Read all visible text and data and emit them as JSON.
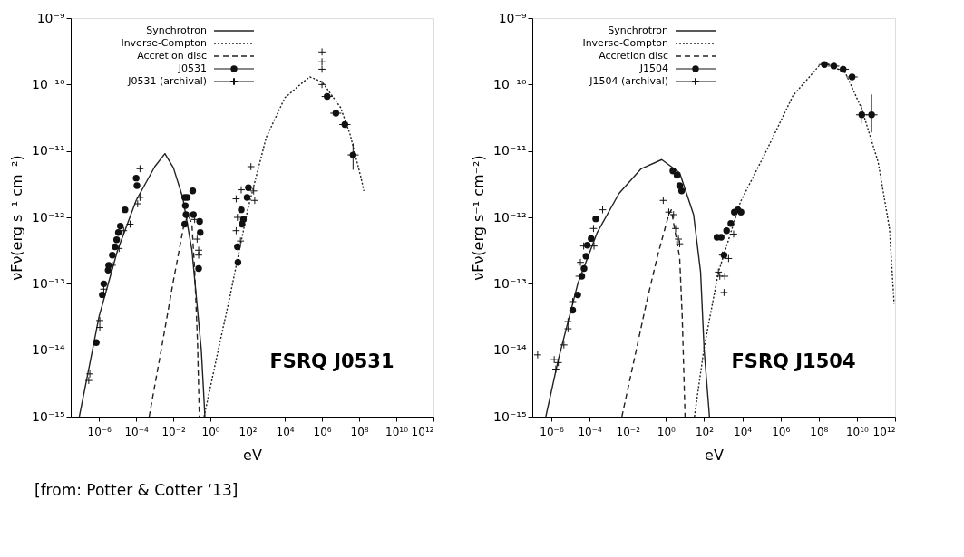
{
  "chart_data": [
    {
      "type": "scatter",
      "title": "FSRQ J0531",
      "xlabel": "eV",
      "ylabel": "νFν(erg s⁻¹ cm⁻²)",
      "log": "xy",
      "legend": "top left",
      "annotations": [
        "[from: Potter & Cotter ‘13]"
      ],
      "xlim": [
        3e-08,
        1000000000000.0
      ],
      "ylim": [
        1e-15,
        1e-09
      ],
      "xticks": [
        {
          "value": 1e-06,
          "label": "10⁻⁶"
        },
        {
          "value": 0.0001,
          "label": "10⁻⁴"
        },
        {
          "value": 0.01,
          "label": "10⁻²"
        },
        {
          "value": 1,
          "label": "10⁰"
        },
        {
          "value": 100,
          "label": "10²"
        },
        {
          "value": 10000.0,
          "label": "10⁴"
        },
        {
          "value": 1000000.0,
          "label": "10⁶"
        },
        {
          "value": 100000000.0,
          "label": "10⁸"
        },
        {
          "value": 10000000000.0,
          "label": "10¹⁰"
        },
        {
          "value": 1000000000000.0,
          "label": "10¹²"
        }
      ],
      "yticks": [
        {
          "value": 1e-15,
          "label": "10⁻¹⁵"
        },
        {
          "value": 1e-14,
          "label": "10⁻¹⁴"
        },
        {
          "value": 1e-13,
          "label": "10⁻¹³"
        },
        {
          "value": 1e-12,
          "label": "10⁻¹²"
        },
        {
          "value": 1e-11,
          "label": "10⁻¹¹"
        },
        {
          "value": 1e-10,
          "label": "10⁻¹⁰"
        },
        {
          "value": 1e-09,
          "label": "10⁻⁹"
        }
      ],
      "series": [
        {
          "name": "Synchrotron",
          "type": "line",
          "line_style": "solid",
          "color": "#222222",
          "x": [
            8.7e-08,
            3.2e-07,
            1e-06,
            1e-05,
            0.0001,
            0.001,
            0.0035,
            0.01,
            0.032,
            0.1,
            0.32,
            0.4,
            0.5
          ],
          "values": [
            1e-15,
            6.3e-15,
            3.2e-14,
            3.2e-13,
            1.8e-12,
            5.8e-12,
            9.1e-12,
            5.6e-12,
            2e-12,
            3.2e-13,
            1e-14,
            3.2e-15,
            1e-15
          ]
        },
        {
          "name": "Inverse-Compton",
          "type": "line",
          "line_style": "dotted",
          "color": "#222222",
          "x": [
            0.45,
            2.6,
            10,
            100,
            1000,
            10000.0,
            100000.0,
            220000.0,
            1000000.0,
            10000000.0,
            32000000.0,
            130000000.0,
            180000000.0
          ],
          "values": [
            1e-15,
            1e-14,
            5.6e-14,
            1.3e-12,
            1.6e-11,
            6.3e-11,
            1.1e-10,
            1.3e-10,
            1.1e-10,
            4.5e-11,
            1.8e-11,
            3.8e-12,
            2.5e-12
          ]
        },
        {
          "name": "Accretion disc",
          "type": "line",
          "line_style": "dashed",
          "color": "#222222",
          "x": [
            0.0005,
            0.0022,
            0.01,
            0.035,
            0.063,
            0.1,
            0.14,
            0.2,
            0.25
          ],
          "values": [
            1e-15,
            1e-14,
            1.1e-13,
            7.1e-13,
            1.1e-12,
            7.9e-13,
            1.6e-13,
            1.3e-14,
            1e-15
          ]
        },
        {
          "name": "J0531",
          "marker": "circle",
          "color": "#111111",
          "x": [
            7.1e-07,
            1.5e-06,
            1.8e-06,
            3.1e-06,
            3.3e-06,
            5.2e-06,
            7.2e-06,
            8.9e-06,
            1.1e-05,
            1.4e-05,
            2.5e-05,
            0.0001,
            0.00011,
            0.041,
            0.056,
            0.044,
            0.048,
            0.041,
            0.11,
            0.12,
            0.26,
            0.28,
            0.23,
            28,
            30,
            45,
            59,
            110,
            93,
            49,
            1900000.0,
            5600000.0,
            17000000.0,
            47000000.0
          ],
          "values": [
            1.3e-14,
            6.8e-14,
            1e-13,
            1.6e-13,
            1.9e-13,
            2.7e-13,
            3.6e-13,
            4.6e-13,
            5.9e-13,
            7.4e-13,
            1.3e-12,
            3.9e-12,
            3e-12,
            2e-12,
            2e-12,
            1.5e-12,
            1.1e-12,
            7.9e-13,
            2.5e-12,
            1.1e-12,
            8.7e-13,
            5.9e-13,
            1.7e-13,
            3.6e-13,
            2.1e-13,
            1.3e-12,
            9.3e-13,
            2.8e-12,
            2e-12,
            7.9e-13,
            6.6e-11,
            3.7e-11,
            2.5e-11,
            8.7e-12
          ],
          "errors": [
            null,
            null,
            null,
            null,
            null,
            null,
            null,
            null,
            null,
            null,
            null,
            null,
            null,
            null,
            null,
            null,
            null,
            null,
            null,
            null,
            null,
            null,
            null,
            null,
            null,
            null,
            null,
            null,
            null,
            null,
            null,
            null,
            null,
            [
              5.2e-12,
              1.3e-11
            ]
          ],
          "xerrors": [
            null,
            null,
            null,
            null,
            null,
            null,
            null,
            null,
            null,
            null,
            null,
            null,
            null,
            null,
            null,
            null,
            null,
            null,
            null,
            null,
            null,
            null,
            null,
            null,
            null,
            null,
            null,
            null,
            null,
            null,
            [
              950000.0,
              3800000.0
            ],
            [
              2800000.0,
              11000000.0
            ],
            [
              8500000.0,
              34000000.0
            ],
            [
              24000000.0,
              94000000.0
            ]
          ]
        },
        {
          "name": "J0531 (archival)",
          "marker": "cross",
          "color": "#111111",
          "x": [
            3.2e-07,
            2.8e-07,
            1.1e-06,
            1.1e-06,
            1.8e-06,
            5.2e-06,
            1.2e-05,
            2.1e-05,
            4.7e-05,
            0.00012,
            0.00016,
            0.00016,
            0.14,
            0.19,
            0.23,
            0.23,
            24,
            28,
            24,
            41,
            150,
            210,
            240,
            45,
            1000000.0,
            1000000.0,
            1000000.0,
            1000000.0
          ],
          "values": [
            4.4e-15,
            3.5e-15,
            2.8e-14,
            2.2e-14,
            8.3e-14,
            1.9e-13,
            3.4e-13,
            6.3e-13,
            7.9e-13,
            1.6e-12,
            2e-12,
            5.4e-12,
            9.3e-13,
            4.7e-13,
            3.2e-13,
            2.7e-13,
            1.9e-12,
            1e-12,
            6.3e-13,
            4.4e-13,
            5.8e-12,
            2.5e-12,
            1.8e-12,
            2.6e-12,
            3.1e-10,
            2.2e-10,
            1.7e-10,
            1e-10
          ]
        }
      ]
    },
    {
      "type": "scatter",
      "title": "FSRQ J1504",
      "xlabel": "eV",
      "ylabel": "νFν(erg s⁻¹ cm⁻²)",
      "log": "xy",
      "legend": "top left",
      "xlim": [
        1e-07,
        1000000000000.0
      ],
      "ylim": [
        1e-15,
        1e-09
      ],
      "xticks": [
        {
          "value": 1e-06,
          "label": "10⁻⁶"
        },
        {
          "value": 0.0001,
          "label": "10⁻⁴"
        },
        {
          "value": 0.01,
          "label": "10⁻²"
        },
        {
          "value": 1,
          "label": "10⁰"
        },
        {
          "value": 100,
          "label": "10²"
        },
        {
          "value": 10000.0,
          "label": "10⁴"
        },
        {
          "value": 1000000.0,
          "label": "10⁶"
        },
        {
          "value": 100000000.0,
          "label": "10⁸"
        },
        {
          "value": 10000000000.0,
          "label": "10¹⁰"
        },
        {
          "value": 1000000000000.0,
          "label": "10¹²"
        }
      ],
      "yticks": [
        {
          "value": 1e-15,
          "label": "10⁻¹⁵"
        },
        {
          "value": 1e-14,
          "label": "10⁻¹⁴"
        },
        {
          "value": 1e-13,
          "label": "10⁻¹³"
        },
        {
          "value": 1e-12,
          "label": "10⁻¹²"
        },
        {
          "value": 1e-11,
          "label": "10⁻¹¹"
        },
        {
          "value": 1e-10,
          "label": "10⁻¹⁰"
        },
        {
          "value": 1e-09,
          "label": "10⁻⁹"
        }
      ],
      "series": [
        {
          "name": "Synchrotron",
          "type": "line",
          "line_style": "solid",
          "color": "#222222",
          "x": [
            5.1e-07,
            2.3e-06,
            2.4e-05,
            0.00025,
            0.0035,
            0.05,
            0.6,
            5.2,
            28,
            65,
            100,
            190
          ],
          "values": [
            1e-15,
            7.2e-15,
            1e-13,
            5.9e-13,
            2.3e-12,
            5.4e-12,
            7.4e-12,
            4.7e-12,
            1.1e-12,
            1.5e-13,
            1e-14,
            1e-15
          ]
        },
        {
          "name": "Inverse-Compton",
          "type": "line",
          "line_style": "dotted",
          "color": "#222222",
          "x": [
            31,
            100,
            560,
            7900,
            160000.0,
            4500000.0,
            120000000.0,
            240000000.0,
            2500000000.0,
            18000000000.0,
            130000000000.0,
            510000000000.0,
            890000000000.0
          ],
          "values": [
            1e-15,
            1.1e-14,
            1.5e-13,
            1.7e-12,
            9.3e-12,
            6.8e-11,
            2e-10,
            2.1e-10,
            1.5e-10,
            4.3e-11,
            6.8e-12,
            6.8e-13,
            5e-14
          ]
        },
        {
          "name": "Accretion disc",
          "type": "line",
          "line_style": "dashed",
          "color": "#222222",
          "x": [
            0.0049,
            0.098,
            0.37,
            1.4,
            1.9,
            5.2,
            7.1,
            10
          ],
          "values": [
            1e-15,
            5.4e-14,
            2.7e-13,
            1.1e-12,
            1.3e-12,
            2.5e-13,
            3.2e-14,
            1e-15
          ]
        },
        {
          "name": "J1504",
          "marker": "circle",
          "color": "#111111",
          "x": [
            0.00021,
            0.00012,
            7.6e-05,
            6.5e-05,
            5.1e-05,
            3.9e-05,
            2.4e-05,
            1.3e-05,
            2.3,
            3.8,
            5.2,
            6.6,
            470,
            780,
            1100,
            1500,
            2500,
            3800,
            5800,
            8500,
            200000000.0,
            620000000.0,
            1900000000.0,
            5600000000.0,
            18000000000.0,
            59000000000.0
          ],
          "values": [
            9.5e-13,
            4.8e-13,
            3.8e-13,
            2.6e-13,
            1.7e-13,
            1.3e-13,
            6.8e-14,
            4e-14,
            5e-12,
            4.3e-12,
            3e-12,
            2.5e-12,
            5e-13,
            5e-13,
            2.7e-13,
            6.3e-13,
            8.1e-13,
            1.2e-12,
            1.3e-12,
            1.2e-12,
            2e-10,
            1.9e-10,
            1.7e-10,
            1.3e-10,
            3.5e-11,
            3.5e-11
          ],
          "errors": [
            null,
            null,
            null,
            null,
            null,
            null,
            null,
            null,
            null,
            null,
            null,
            null,
            null,
            null,
            null,
            null,
            null,
            null,
            null,
            null,
            null,
            null,
            null,
            null,
            [
              2.6e-11,
              4.9e-11
            ],
            [
              1.9e-11,
              7.1e-11
            ]
          ],
          "xerrors": [
            null,
            null,
            null,
            null,
            null,
            null,
            null,
            null,
            null,
            null,
            null,
            null,
            null,
            null,
            null,
            null,
            null,
            null,
            null,
            null,
            [
              100000000.0,
              400000000.0
            ],
            [
              310000000.0,
              1200000000.0
            ],
            [
              950000000.0,
              3800000000.0
            ],
            [
              2800000000.0,
              11000000000.0
            ],
            [
              9000000000.0,
              36000000000.0
            ],
            [
              30000000000.0,
              120000000000.0
            ]
          ]
        },
        {
          "name": "J1504 (archival)",
          "marker": "cross",
          "color": "#111111",
          "x": [
            1.9e-07,
            1.4e-06,
            2.3e-06,
            1.7e-06,
            4.5e-06,
            7.4e-06,
            7.4e-06,
            1.3e-05,
            2.8e-05,
            3.3e-05,
            4.9e-05,
            0.00017,
            0.00016,
            0.00048,
            0.72,
            1.4,
            2.5,
            3.2,
            4.5,
            5.2,
            560,
            910,
            1900,
            3500,
            660,
            1100,
            1200
          ],
          "values": [
            8.5e-15,
            7.2e-15,
            6.5e-15,
            5.2e-15,
            1.2e-14,
            2.7e-14,
            2.1e-14,
            5.4e-14,
            1.3e-13,
            2.1e-13,
            3.7e-13,
            3.7e-13,
            6.8e-13,
            1.3e-12,
            1.8e-12,
            1.2e-12,
            1.1e-12,
            6.8e-13,
            4.7e-13,
            4e-13,
            1.5e-13,
            2.7e-13,
            2.4e-13,
            5.6e-13,
            1.3e-13,
            7.4e-14,
            1.3e-13
          ]
        }
      ]
    }
  ]
}
